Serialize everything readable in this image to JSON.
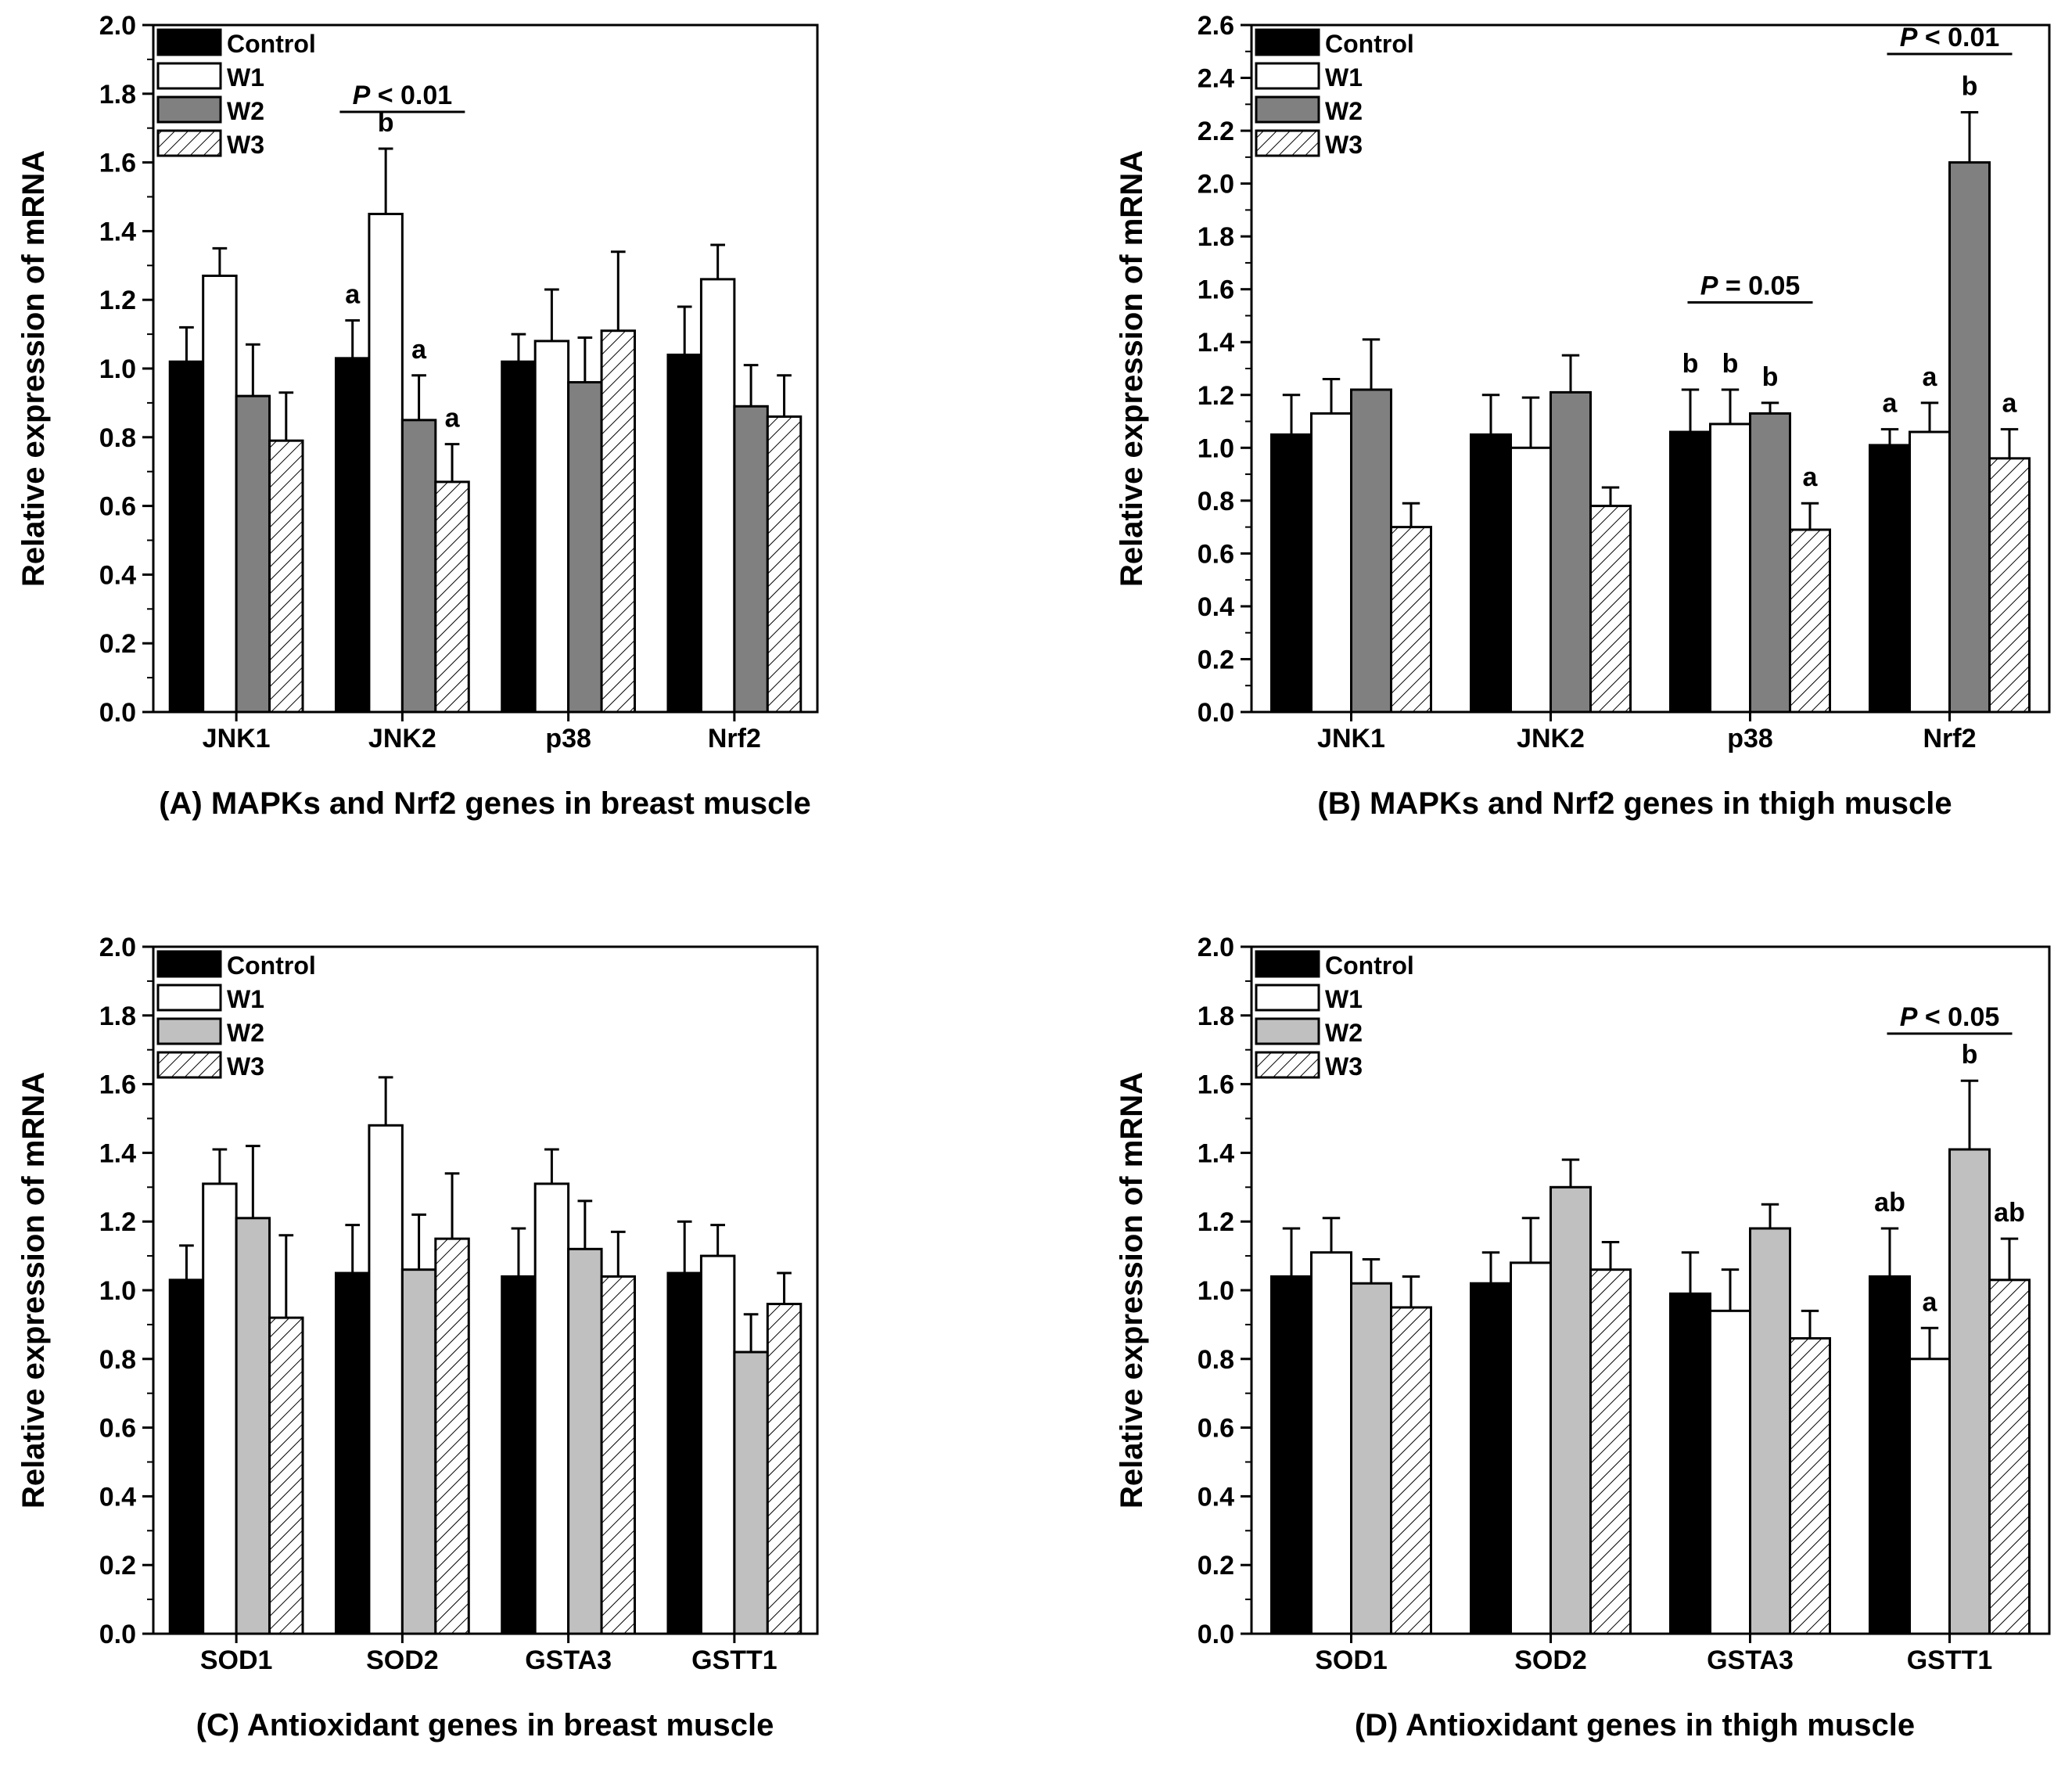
{
  "legend": [
    "Control",
    "W1",
    "W2",
    "W3"
  ],
  "fills": {
    "Control": "#000000",
    "W1": "#ffffff",
    "W3": "hatch"
  },
  "w2_colors": {
    "dark": "#808080",
    "light": "#c0c0c0"
  },
  "chart_data": [
    {
      "panel": "A",
      "type": "bar",
      "caption": "(A) MAPKs and Nrf2 genes in breast muscle",
      "ylabel": "Relative expression of mRNA",
      "ylim": [
        0,
        2.0
      ],
      "ytick_step": 0.2,
      "yticks": [
        "0.0",
        "0.2",
        "0.4",
        "0.6",
        "0.8",
        "1.0",
        "1.2",
        "1.4",
        "1.6",
        "1.8",
        "2.0"
      ],
      "w2_shade": "dark",
      "categories": [
        "JNK1",
        "JNK2",
        "p38",
        "Nrf2"
      ],
      "series": [
        {
          "name": "Control",
          "values": [
            1.02,
            1.03,
            1.02,
            1.04
          ],
          "errors": [
            0.1,
            0.11,
            0.08,
            0.14
          ]
        },
        {
          "name": "W1",
          "values": [
            1.27,
            1.45,
            1.08,
            1.26
          ],
          "errors": [
            0.08,
            0.19,
            0.15,
            0.1
          ]
        },
        {
          "name": "W2",
          "values": [
            0.92,
            0.85,
            0.96,
            0.89
          ],
          "errors": [
            0.15,
            0.13,
            0.13,
            0.12
          ]
        },
        {
          "name": "W3",
          "values": [
            0.79,
            0.67,
            1.11,
            0.86
          ],
          "errors": [
            0.14,
            0.11,
            0.23,
            0.12
          ]
        }
      ],
      "letters": [
        {
          "category": 1,
          "series": 0,
          "text": "a"
        },
        {
          "category": 1,
          "series": 1,
          "text": "b"
        },
        {
          "category": 1,
          "series": 2,
          "text": "a"
        },
        {
          "category": 1,
          "series": 3,
          "text": "a"
        }
      ],
      "pvalues": [
        {
          "category": 1,
          "italic": "P",
          "text": " < 0.01",
          "y": 1.77
        }
      ]
    },
    {
      "panel": "B",
      "type": "bar",
      "caption": "(B) MAPKs and Nrf2 genes in thigh muscle",
      "ylabel": "Relative expression of mRNA",
      "ylim": [
        0,
        2.6
      ],
      "ytick_step": 0.2,
      "yticks": [
        "0.0",
        "0.2",
        "0.4",
        "0.6",
        "0.8",
        "1.0",
        "1.2",
        "1.4",
        "1.6",
        "1.8",
        "2.0",
        "2.2",
        "2.4",
        "2.6"
      ],
      "w2_shade": "dark",
      "categories": [
        "JNK1",
        "JNK2",
        "p38",
        "Nrf2"
      ],
      "series": [
        {
          "name": "Control",
          "values": [
            1.05,
            1.05,
            1.06,
            1.01
          ],
          "errors": [
            0.15,
            0.15,
            0.16,
            0.06
          ]
        },
        {
          "name": "W1",
          "values": [
            1.13,
            1.0,
            1.09,
            1.06
          ],
          "errors": [
            0.13,
            0.19,
            0.13,
            0.11
          ]
        },
        {
          "name": "W2",
          "values": [
            1.22,
            1.21,
            1.13,
            2.08
          ],
          "errors": [
            0.19,
            0.14,
            0.04,
            0.19
          ]
        },
        {
          "name": "W3",
          "values": [
            0.7,
            0.78,
            0.69,
            0.96
          ],
          "errors": [
            0.09,
            0.07,
            0.1,
            0.11
          ]
        }
      ],
      "letters": [
        {
          "category": 2,
          "series": 0,
          "text": "b"
        },
        {
          "category": 2,
          "series": 1,
          "text": "b"
        },
        {
          "category": 2,
          "series": 2,
          "text": "b"
        },
        {
          "category": 2,
          "series": 3,
          "text": "a"
        },
        {
          "category": 3,
          "series": 0,
          "text": "a"
        },
        {
          "category": 3,
          "series": 1,
          "text": "a"
        },
        {
          "category": 3,
          "series": 2,
          "text": "b"
        },
        {
          "category": 3,
          "series": 3,
          "text": "a"
        }
      ],
      "pvalues": [
        {
          "category": 2,
          "italic": "P",
          "text": " = 0.05",
          "y": 1.58
        },
        {
          "category": 3,
          "italic": "P",
          "text": " < 0.01",
          "y": 2.52
        }
      ]
    },
    {
      "panel": "C",
      "type": "bar",
      "caption": "(C) Antioxidant genes in breast muscle",
      "ylabel": "Relative expression of mRNA",
      "ylim": [
        0,
        2.0
      ],
      "ytick_step": 0.2,
      "yticks": [
        "0.0",
        "0.2",
        "0.4",
        "0.6",
        "0.8",
        "1.0",
        "1.2",
        "1.4",
        "1.6",
        "1.8",
        "2.0"
      ],
      "w2_shade": "light",
      "categories": [
        "SOD1",
        "SOD2",
        "GSTA3",
        "GSTT1"
      ],
      "series": [
        {
          "name": "Control",
          "values": [
            1.03,
            1.05,
            1.04,
            1.05
          ],
          "errors": [
            0.1,
            0.14,
            0.14,
            0.15
          ]
        },
        {
          "name": "W1",
          "values": [
            1.31,
            1.48,
            1.31,
            1.1
          ],
          "errors": [
            0.1,
            0.14,
            0.1,
            0.09
          ]
        },
        {
          "name": "W2",
          "values": [
            1.21,
            1.06,
            1.12,
            0.82
          ],
          "errors": [
            0.21,
            0.16,
            0.14,
            0.11
          ]
        },
        {
          "name": "W3",
          "values": [
            0.92,
            1.15,
            1.04,
            0.96
          ],
          "errors": [
            0.24,
            0.19,
            0.13,
            0.09
          ]
        }
      ],
      "letters": [],
      "pvalues": []
    },
    {
      "panel": "D",
      "type": "bar",
      "caption": "(D) Antioxidant genes in thigh muscle",
      "ylabel": "Relative expression of mRNA",
      "ylim": [
        0,
        2.0
      ],
      "ytick_step": 0.2,
      "yticks": [
        "0.0",
        "0.2",
        "0.4",
        "0.6",
        "0.8",
        "1.0",
        "1.2",
        "1.4",
        "1.6",
        "1.8",
        "2.0"
      ],
      "w2_shade": "light",
      "categories": [
        "SOD1",
        "SOD2",
        "GSTA3",
        "GSTT1"
      ],
      "series": [
        {
          "name": "Control",
          "values": [
            1.04,
            1.02,
            0.99,
            1.04
          ],
          "errors": [
            0.14,
            0.09,
            0.12,
            0.14
          ]
        },
        {
          "name": "W1",
          "values": [
            1.11,
            1.08,
            0.94,
            0.8
          ],
          "errors": [
            0.1,
            0.13,
            0.12,
            0.09
          ]
        },
        {
          "name": "W2",
          "values": [
            1.02,
            1.3,
            1.18,
            1.41
          ],
          "errors": [
            0.07,
            0.08,
            0.07,
            0.2
          ]
        },
        {
          "name": "W3",
          "values": [
            0.95,
            1.06,
            0.86,
            1.03
          ],
          "errors": [
            0.09,
            0.08,
            0.08,
            0.12
          ]
        }
      ],
      "letters": [
        {
          "category": 3,
          "series": 0,
          "text": "ab"
        },
        {
          "category": 3,
          "series": 1,
          "text": "a"
        },
        {
          "category": 3,
          "series": 2,
          "text": "b"
        },
        {
          "category": 3,
          "series": 3,
          "text": "ab"
        }
      ],
      "pvalues": [
        {
          "category": 3,
          "italic": "P",
          "text": " < 0.05",
          "y": 1.77
        }
      ]
    }
  ]
}
